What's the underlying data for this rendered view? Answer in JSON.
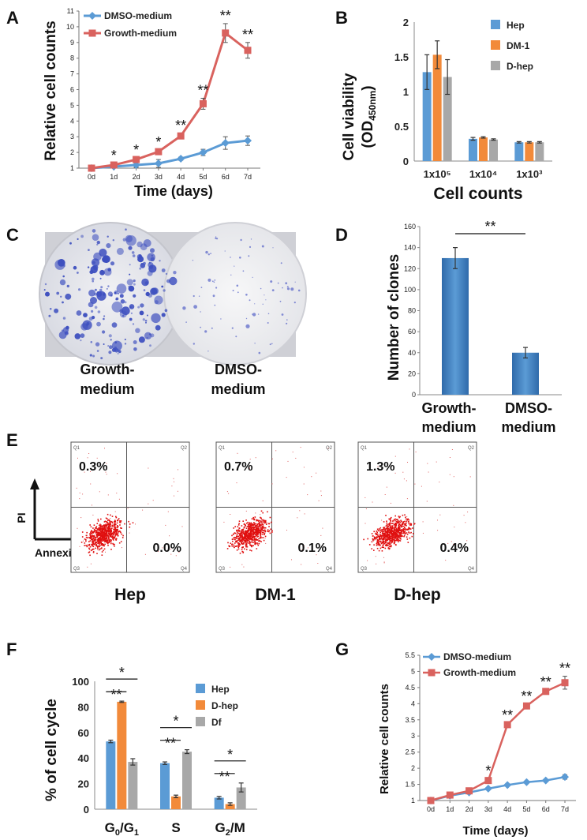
{
  "panels": {
    "A": "A",
    "B": "B",
    "C": "C",
    "D": "D",
    "E": "E",
    "F": "F",
    "G": "G"
  },
  "colors": {
    "blue": "#5b9bd5",
    "red": "#d9625e",
    "orange": "#f28a3a",
    "gray": "#a8a8a8",
    "dark_blue": "#3c7cbf",
    "flow_red": "#e01010"
  },
  "chart_data": [
    {
      "id": "A",
      "type": "line",
      "x": [
        "0d",
        "1d",
        "2d",
        "3d",
        "4d",
        "5d",
        "6d",
        "7d"
      ],
      "series": [
        {
          "name": "DMSO-medium",
          "values": [
            1,
            1.1,
            1.2,
            1.3,
            1.6,
            2.0,
            2.6,
            2.75
          ],
          "errors": [
            0,
            0.1,
            0.15,
            0.25,
            0.1,
            0.2,
            0.4,
            0.3
          ]
        },
        {
          "name": "Growth-medium",
          "values": [
            1,
            1.2,
            1.55,
            2.05,
            3.05,
            5.1,
            9.6,
            8.5
          ],
          "errors": [
            0,
            0.1,
            0.1,
            0.1,
            0.15,
            0.35,
            0.6,
            0.5
          ]
        }
      ],
      "significance": [
        "",
        "*",
        "*",
        "*",
        "**",
        "**",
        "**",
        "**"
      ],
      "xlabel": "Time (days)",
      "ylabel": "Relative cell counts",
      "ylim": [
        1,
        11
      ],
      "yticks": [
        "1",
        "2",
        "3",
        "4",
        "5",
        "6",
        "7",
        "8",
        "9",
        "10",
        "11"
      ]
    },
    {
      "id": "B",
      "type": "bar",
      "categories": [
        "1x10⁵",
        "1x10⁴",
        "1x10³"
      ],
      "series": [
        {
          "name": "Hep",
          "values": [
            1.28,
            0.32,
            0.27
          ],
          "errors": [
            0.25,
            0.02,
            0.01
          ]
        },
        {
          "name": "DM-1",
          "values": [
            1.53,
            0.34,
            0.27
          ],
          "errors": [
            0.2,
            0.01,
            0.01
          ]
        },
        {
          "name": "D-hep",
          "values": [
            1.21,
            0.31,
            0.27
          ],
          "errors": [
            0.25,
            0.01,
            0.01
          ]
        }
      ],
      "xlabel": "Cell counts",
      "ylabel_main": "Cell viability",
      "ylabel_sub": "(OD",
      "ylabel_subscript": "450nm",
      "ylabel_close": ")",
      "ylim": [
        0,
        2
      ],
      "yticks": [
        "0",
        "0.5",
        "1",
        "1.5",
        "2"
      ]
    },
    {
      "id": "D",
      "type": "bar",
      "categories": [
        "Growth-\nmedium",
        "DMSO-\nmedium"
      ],
      "cat_line1": [
        "Growth-",
        "DMSO-"
      ],
      "cat_line2": [
        "medium",
        "medium"
      ],
      "values": [
        130,
        40
      ],
      "errors": [
        10,
        5
      ],
      "ylabel": "Number of clones",
      "ylim": [
        0,
        160
      ],
      "yticks": [
        "0",
        "20",
        "40",
        "60",
        "80",
        "100",
        "120",
        "140",
        "160"
      ],
      "significance": "**"
    },
    {
      "id": "F",
      "type": "bar",
      "categories": [
        "G0/G1",
        "S",
        "G2/M"
      ],
      "cat_main": [
        "G",
        "S",
        "G"
      ],
      "cat_sub1": [
        "0",
        "",
        "2"
      ],
      "cat_mid": [
        "/G",
        "",
        "/M"
      ],
      "cat_sub2": [
        "1",
        "",
        ""
      ],
      "series": [
        {
          "name": "Hep",
          "values": [
            53,
            36,
            9
          ],
          "errors": [
            1,
            1,
            1
          ]
        },
        {
          "name": "D-hep",
          "values": [
            84,
            10,
            4
          ],
          "errors": [
            0.5,
            1,
            1
          ]
        },
        {
          "name": "Df",
          "values": [
            37,
            45,
            17
          ],
          "errors": [
            2.5,
            1.5,
            3.5
          ]
        }
      ],
      "significance": [
        [
          "**",
          "*"
        ],
        [
          "**",
          "*"
        ],
        [
          "**",
          "*"
        ]
      ],
      "ylabel": "% of cell cycle",
      "ylim": [
        0,
        100
      ],
      "yticks": [
        "0",
        "20",
        "40",
        "60",
        "80",
        "100"
      ]
    },
    {
      "id": "G",
      "type": "line",
      "x": [
        "0d",
        "1d",
        "2d",
        "3d",
        "4d",
        "5d",
        "6d",
        "7d"
      ],
      "series": [
        {
          "name": "DMSO-medium",
          "values": [
            1,
            1.15,
            1.25,
            1.37,
            1.48,
            1.57,
            1.62,
            1.73
          ],
          "errors": [
            0,
            0.03,
            0.03,
            0.03,
            0.03,
            0.03,
            0.03,
            0.07
          ]
        },
        {
          "name": "Growth-medium",
          "values": [
            1,
            1.17,
            1.3,
            1.62,
            3.35,
            3.93,
            4.38,
            4.65
          ],
          "errors": [
            0,
            0.03,
            0.03,
            0.05,
            0.05,
            0.05,
            0.05,
            0.2
          ]
        }
      ],
      "significance": [
        "",
        "",
        "",
        "*",
        "**",
        "**",
        "**",
        "**"
      ],
      "xlabel": "Time (days)",
      "ylabel": "Relative cell counts",
      "ylim": [
        1,
        5.5
      ],
      "yticks": [
        "1",
        "1.5",
        "2",
        "2.5",
        "3",
        "3.5",
        "4",
        "4.5",
        "5",
        "5.5"
      ]
    }
  ],
  "panel_c": {
    "labels_line1": [
      "Growth-",
      "DMSO-"
    ],
    "labels_line2": [
      "medium",
      "medium"
    ]
  },
  "panel_e": {
    "plots": [
      {
        "name": "Hep",
        "q1": "0.3%",
        "q4": "0.0%"
      },
      {
        "name": "DM-1",
        "q1": "0.7%",
        "q4": "0.1%"
      },
      {
        "name": "D-hep",
        "q1": "1.3%",
        "q4": "0.4%"
      }
    ],
    "quadrants": [
      "Q1",
      "Q2",
      "Q3",
      "Q4"
    ],
    "y_axis": "PI",
    "x_axis": "Annexin V"
  }
}
